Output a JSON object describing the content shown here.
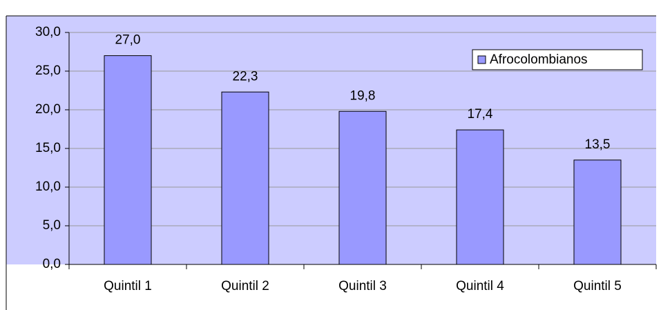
{
  "chart_data": {
    "type": "bar",
    "categories": [
      "Quintil 1",
      "Quintil 2",
      "Quintil 3",
      "Quintil 4",
      "Quintil 5"
    ],
    "series": [
      {
        "name": "Afrocolombianos",
        "color": "#9999ff",
        "values": [
          27.0,
          22.3,
          19.8,
          17.4,
          13.5
        ],
        "value_labels": [
          "27,0",
          "22,3",
          "19,8",
          "17,4",
          "13,5"
        ]
      }
    ],
    "ylim": [
      0,
      30
    ],
    "yticks": [
      {
        "value": 0,
        "label": "0,0"
      },
      {
        "value": 5,
        "label": "5,0"
      },
      {
        "value": 10,
        "label": "10,0"
      },
      {
        "value": 15,
        "label": "15,0"
      },
      {
        "value": 20,
        "label": "20,0"
      },
      {
        "value": 25,
        "label": "25,0"
      },
      {
        "value": 30,
        "label": "30,0"
      }
    ],
    "grid": true,
    "legend": "top-right"
  }
}
